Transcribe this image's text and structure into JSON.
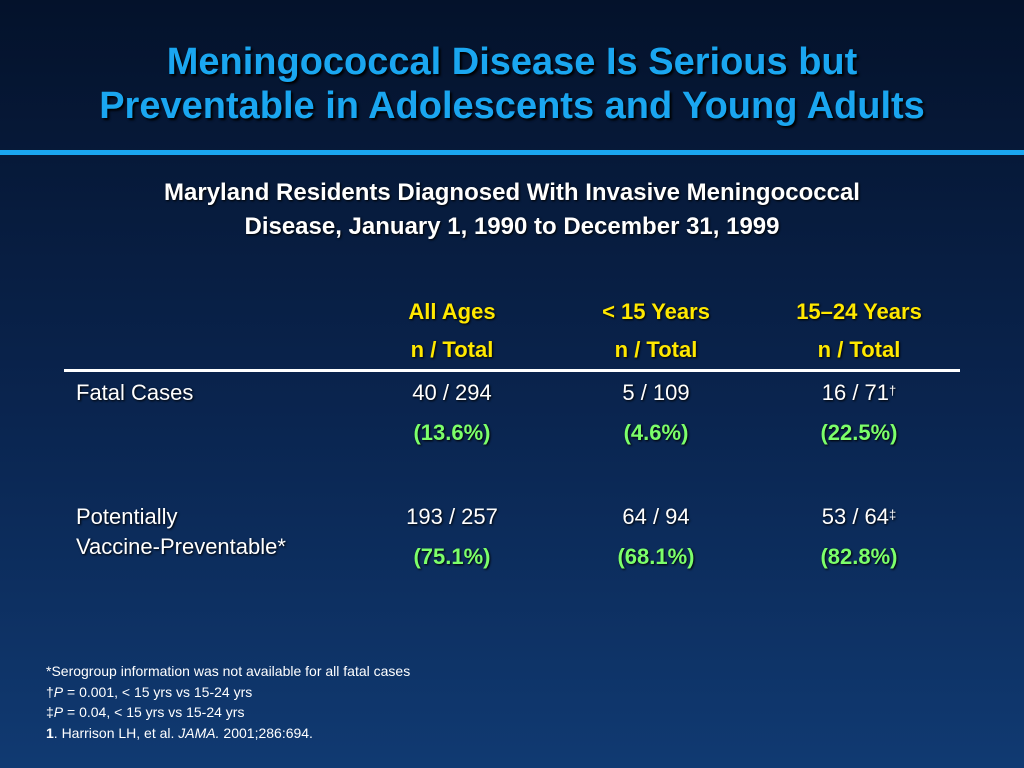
{
  "title": {
    "line1": "Meningococcal Disease Is Serious but",
    "line2": "Preventable in Adolescents and Young Adults"
  },
  "subtitle": {
    "line1": "Maryland Residents Diagnosed With Invasive Meningococcal",
    "line2": "Disease, January 1, 1990 to December 31, 1999"
  },
  "columns": [
    {
      "label": "All Ages",
      "unit": "n / Total"
    },
    {
      "label": "< 15 Years",
      "unit": "n / Total"
    },
    {
      "label": "15–24 Years",
      "unit": "n / Total"
    }
  ],
  "rows": [
    {
      "label_line1": "Fatal Cases",
      "label_line2": "",
      "cells": [
        {
          "value": "40 / 294",
          "mark": "",
          "pct": "(13.6%)"
        },
        {
          "value": "5 / 109",
          "mark": "",
          "pct": "(4.6%)"
        },
        {
          "value": "16 / 71",
          "mark": "†",
          "pct": "(22.5%)"
        }
      ]
    },
    {
      "label_line1": "Potentially",
      "label_line2": "Vaccine-Preventable*",
      "cells": [
        {
          "value": "193 / 257",
          "mark": "",
          "pct": "(75.1%)"
        },
        {
          "value": "64 / 94",
          "mark": "",
          "pct": "(68.1%)"
        },
        {
          "value": "53 / 64",
          "mark": "‡",
          "pct": "(82.8%)"
        }
      ]
    }
  ],
  "footnotes": {
    "note1": "*Serogroup information was not available for all fatal cases",
    "note2_mark": "†",
    "note2_p": "P",
    "note2_text": " = 0.001, < 15 yrs vs 15-24 yrs",
    "note3_mark": "‡",
    "note3_p": "P",
    "note3_text": " = 0.04, < 15 yrs vs 15-24 yrs",
    "ref_num": "1",
    "ref_text1": ". Harrison LH, et al. ",
    "ref_journal": "JAMA.",
    "ref_text2": " 2001;286:694."
  }
}
